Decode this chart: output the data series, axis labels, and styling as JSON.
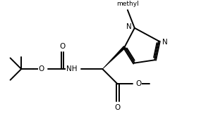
{
  "bg": "#ffffff",
  "lc": "#000000",
  "lw": 1.4,
  "fs": 7.5,
  "xlim": [
    0,
    10
  ],
  "ylim": [
    0,
    7
  ],
  "figw": 2.85,
  "figh": 1.99,
  "dpi": 100
}
